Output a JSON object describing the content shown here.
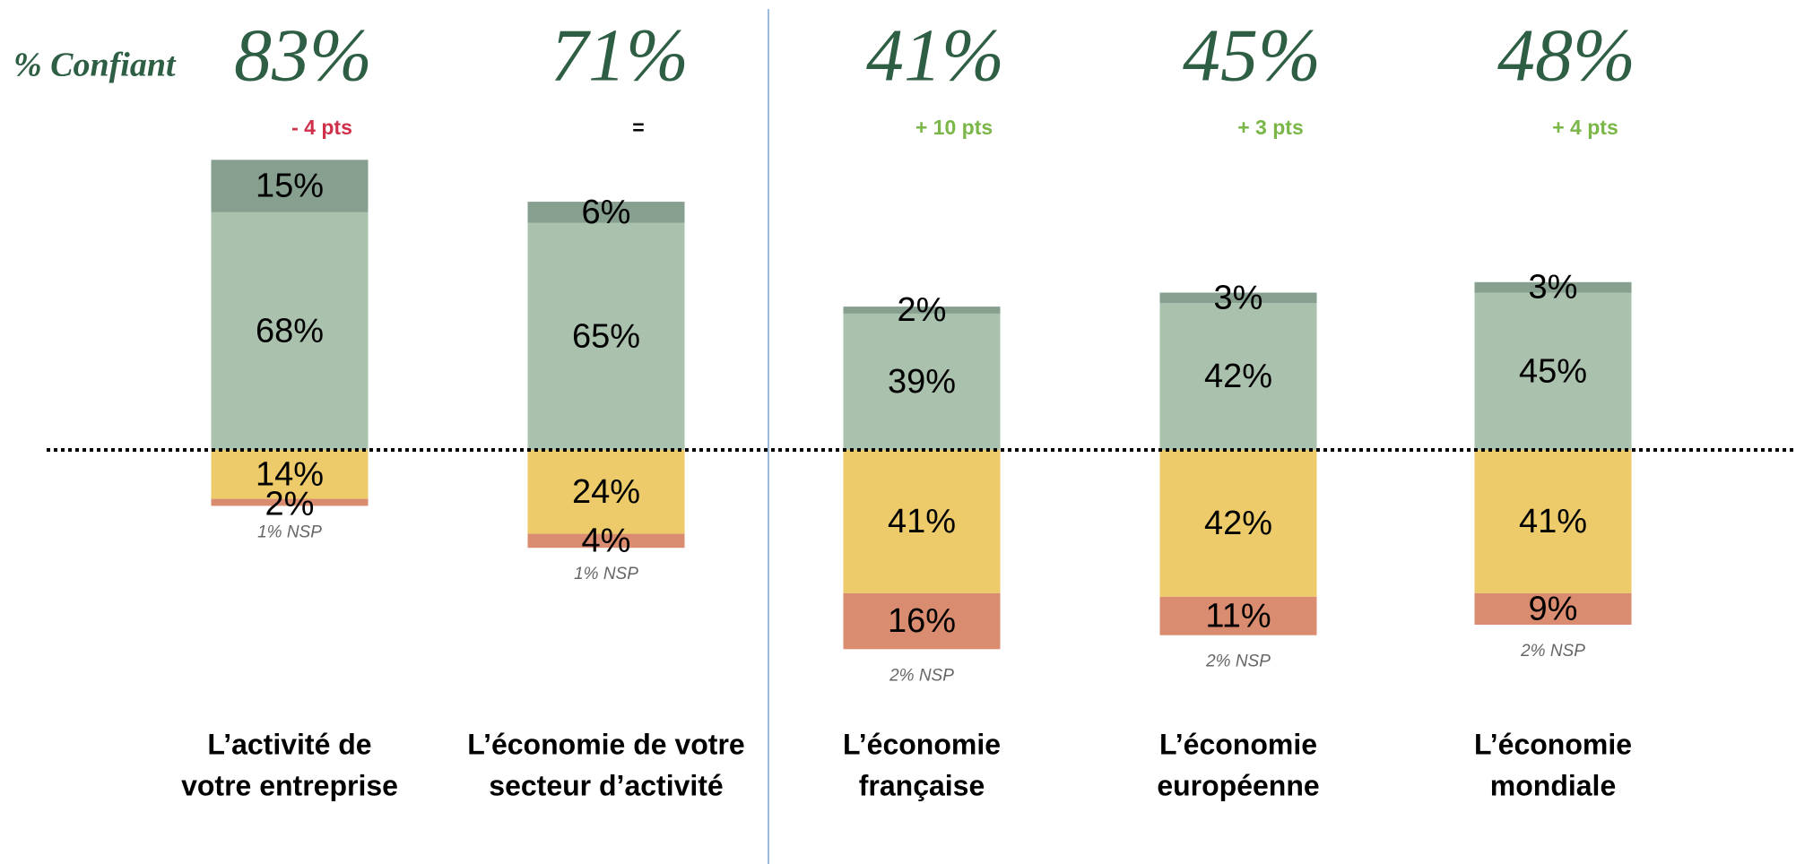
{
  "chart_data": {
    "type": "diverging_bar",
    "confident_label": "% Confiant",
    "categories": [
      [
        "L’activité de",
        "votre entreprise"
      ],
      [
        "L’économie de votre",
        "secteur d’activité"
      ],
      [
        "L’économie",
        "française"
      ],
      [
        "L’économie",
        "européenne"
      ],
      [
        "L’économie",
        "mondiale"
      ]
    ],
    "confident": [
      83,
      71,
      41,
      45,
      48
    ],
    "confident_labels": [
      "83%",
      "71%",
      "41%",
      "45%",
      "48%"
    ],
    "changes": [
      -4,
      0,
      10,
      3,
      4
    ],
    "change_labels": [
      "- 4 pts",
      "=",
      "+ 10 pts",
      "+ 3 pts",
      "+ 4 pts"
    ],
    "positive_color": "#7ab648",
    "negative_color": "#d0304a",
    "neutral_color": "#000000",
    "positive_series": [
      {
        "color": "#a9c1ad",
        "values": [
          68,
          65,
          39,
          42,
          45
        ],
        "value_labels": [
          "68%",
          "65%",
          "39%",
          "42%",
          "45%"
        ]
      },
      {
        "color": "#869f8f",
        "values": [
          15,
          6,
          2,
          3,
          3
        ],
        "value_labels": [
          "15%",
          "6%",
          "2%",
          "3%",
          "3%"
        ]
      }
    ],
    "negative_series": [
      {
        "color": "#edcb6a",
        "values": [
          14,
          24,
          41,
          42,
          41
        ],
        "value_labels": [
          "14%",
          "24%",
          "41%",
          "42%",
          "41%"
        ]
      },
      {
        "color": "#d98c70",
        "values": [
          2,
          4,
          16,
          11,
          9
        ],
        "value_labels": [
          "2%",
          "4%",
          "16%",
          "11%",
          "9%"
        ]
      }
    ],
    "nsp": [
      1,
      1,
      2,
      2,
      2
    ],
    "nsp_labels": [
      "1% NSP",
      "1% NSP",
      "2% NSP",
      "2% NSP",
      "2% NSP"
    ]
  }
}
